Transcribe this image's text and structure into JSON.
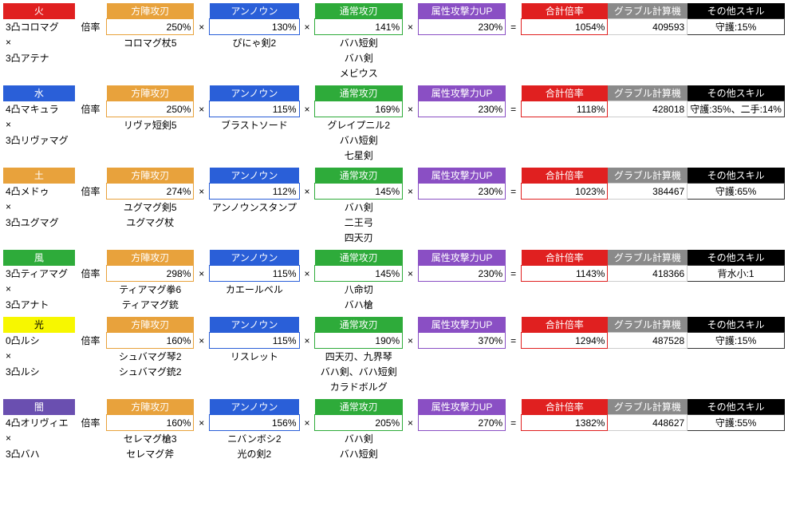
{
  "headers": {
    "houjin": "方陣攻刃",
    "unknown": "アンノウン",
    "normal": "通常攻刃",
    "elem": "属性攻撃力UP",
    "total": "合計倍率",
    "calc": "グラブル計算機",
    "other": "その他スキル",
    "rate": "倍率"
  },
  "colors": {
    "fire": "#e02020",
    "water": "#2a5fd8",
    "earth": "#e8a23c",
    "wind": "#2eab3a",
    "light": "#f7f700",
    "dark": "#6a4fb0",
    "orangeHdr": "#e8a23c",
    "blueHdr": "#2a5fd8",
    "greenHdr": "#2eab3a",
    "purpleHdr": "#8a4fc4",
    "redHdr": "#e02020",
    "grayHdr": "#8a8a8a",
    "blackHdr": "#000000"
  },
  "blocks": [
    {
      "elem": "火",
      "elemKey": "fire",
      "elemTextColor": "#ffffff",
      "summons": [
        "3凸コロマグ",
        "×",
        "3凸アテナ"
      ],
      "houjin": "250%",
      "unknown": "130%",
      "normal": "141%",
      "elemup": "230%",
      "total": "1054%",
      "calc": "409593",
      "other": "守護:15%",
      "wHoujin": [
        "コロマグ杖5"
      ],
      "wUnknown": [
        "ぴにゃ剣2"
      ],
      "wNormal": [
        "バハ短剣",
        "バハ剣",
        "メビウス"
      ]
    },
    {
      "elem": "水",
      "elemKey": "water",
      "elemTextColor": "#ffffff",
      "summons": [
        "4凸マキュラ",
        "×",
        "3凸リヴァマグ"
      ],
      "houjin": "250%",
      "unknown": "115%",
      "normal": "169%",
      "elemup": "230%",
      "total": "1118%",
      "calc": "428018",
      "other": "守護:35%、二手:14%",
      "wHoujin": [
        "リヴァ短剣5"
      ],
      "wUnknown": [
        "ブラストソード"
      ],
      "wNormal": [
        "グレイプニル2",
        "バハ短剣",
        "七星剣"
      ]
    },
    {
      "elem": "土",
      "elemKey": "earth",
      "elemTextColor": "#ffffff",
      "summons": [
        "4凸メドゥ",
        "×",
        "3凸ユグマグ"
      ],
      "houjin": "274%",
      "unknown": "112%",
      "normal": "145%",
      "elemup": "230%",
      "total": "1023%",
      "calc": "384467",
      "other": "守護:65%",
      "wHoujin": [
        "ユグマグ剣5",
        "ユグマグ杖"
      ],
      "wUnknown": [
        "アンノウンスタンプ"
      ],
      "wNormal": [
        "バハ剣",
        "二王弓",
        "四天刃"
      ]
    },
    {
      "elem": "風",
      "elemKey": "wind",
      "elemTextColor": "#ffffff",
      "summons": [
        "3凸ティアマグ",
        "×",
        "3凸アナト"
      ],
      "houjin": "298%",
      "unknown": "115%",
      "normal": "145%",
      "elemup": "230%",
      "total": "1143%",
      "calc": "418366",
      "other": "背水小:1",
      "wHoujin": [
        "ティアマグ拳6",
        "ティアマグ銃"
      ],
      "wUnknown": [
        "カエールベル"
      ],
      "wNormal": [
        "八命切",
        "バハ槍"
      ]
    },
    {
      "elem": "光",
      "elemKey": "light",
      "elemTextColor": "#000000",
      "summons": [
        "0凸ルシ",
        "×",
        "3凸ルシ"
      ],
      "houjin": "160%",
      "unknown": "115%",
      "normal": "190%",
      "elemup": "370%",
      "total": "1294%",
      "calc": "487528",
      "other": "守護:15%",
      "wHoujin": [
        "シュバマグ琴2",
        "シュバマグ銃2"
      ],
      "wUnknown": [
        "リスレット"
      ],
      "wNormal": [
        "四天刃、九界琴",
        "バハ剣、バハ短剣",
        "カラドボルグ"
      ]
    },
    {
      "elem": "闇",
      "elemKey": "dark",
      "elemTextColor": "#ffffff",
      "summons": [
        "4凸オリヴィエ",
        "×",
        "3凸バハ"
      ],
      "houjin": "160%",
      "unknown": "156%",
      "normal": "205%",
      "elemup": "270%",
      "total": "1382%",
      "calc": "448627",
      "other": "守護:55%",
      "wHoujin": [
        "セレマグ槍3",
        "セレマグ斧"
      ],
      "wUnknown": [
        "ニバンボシ2",
        "光の剣2"
      ],
      "wNormal": [
        "バハ剣",
        "バハ短剣"
      ]
    }
  ]
}
